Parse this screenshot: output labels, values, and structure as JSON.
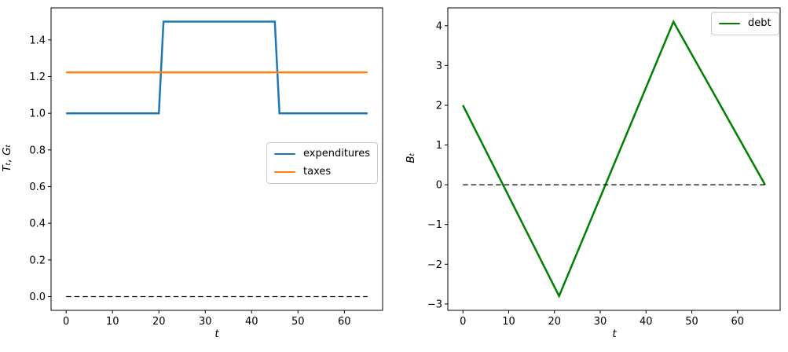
{
  "figure": {
    "background": "#ffffff"
  },
  "chart_data": [
    {
      "type": "line",
      "title": "",
      "xlabel": "t",
      "ylabel": "Tₜ, Gₜ",
      "xlim": [
        -3.25,
        68.25
      ],
      "ylim": [
        -0.075,
        1.575
      ],
      "grid": false,
      "xticks": [
        0,
        10,
        20,
        30,
        40,
        50,
        60
      ],
      "xtick_labels": [
        "0",
        "10",
        "20",
        "30",
        "40",
        "50",
        "60"
      ],
      "yticks": [
        0.0,
        0.2,
        0.4,
        0.6,
        0.8,
        1.0,
        1.2,
        1.4
      ],
      "ytick_labels": [
        "0.0",
        "0.2",
        "0.4",
        "0.6",
        "0.8",
        "1.0",
        "1.2",
        "1.4"
      ],
      "legend": {
        "position": "center right",
        "entries": [
          "expenditures",
          "taxes"
        ]
      },
      "series": [
        {
          "name": "expenditures",
          "color": "#1f77b4",
          "width": 2.5,
          "style": "solid",
          "in_legend": true,
          "points": [
            [
              0,
              1.0
            ],
            [
              20,
              1.0
            ],
            [
              21,
              1.5
            ],
            [
              45,
              1.5
            ],
            [
              46,
              1.0
            ],
            [
              65,
              1.0
            ]
          ]
        },
        {
          "name": "taxes",
          "color": "#ff7f0e",
          "width": 2.5,
          "style": "solid",
          "in_legend": true,
          "points": [
            [
              0,
              1.223
            ],
            [
              65,
              1.223
            ]
          ]
        },
        {
          "name": "zero line",
          "color": "#000000",
          "width": 1.2,
          "style": "dashed",
          "in_legend": false,
          "points": [
            [
              0,
              0.0
            ],
            [
              65,
              0.0
            ]
          ]
        }
      ]
    },
    {
      "type": "line",
      "title": "",
      "xlabel": "t",
      "ylabel": "Bₜ",
      "xlim": [
        -3.3,
        69.3
      ],
      "ylim": [
        -3.16,
        4.45
      ],
      "grid": false,
      "xticks": [
        0,
        10,
        20,
        30,
        40,
        50,
        60
      ],
      "xtick_labels": [
        "0",
        "10",
        "20",
        "30",
        "40",
        "50",
        "60"
      ],
      "yticks": [
        -3,
        -2,
        -1,
        0,
        1,
        2,
        3,
        4
      ],
      "ytick_labels": [
        "−3",
        "−2",
        "−1",
        "0",
        "1",
        "2",
        "3",
        "4"
      ],
      "legend": {
        "position": "upper right",
        "entries": [
          "debt"
        ]
      },
      "series": [
        {
          "name": "debt",
          "color": "#008000",
          "width": 2.5,
          "style": "solid",
          "in_legend": true,
          "points": [
            [
              0,
              2.0
            ],
            [
              21,
              -2.8
            ],
            [
              46,
              4.1
            ],
            [
              66,
              0.0
            ]
          ]
        },
        {
          "name": "zero line",
          "color": "#000000",
          "width": 1.2,
          "style": "dashed",
          "in_legend": false,
          "points": [
            [
              0,
              0.0
            ],
            [
              66,
              0.0
            ]
          ]
        }
      ]
    }
  ]
}
